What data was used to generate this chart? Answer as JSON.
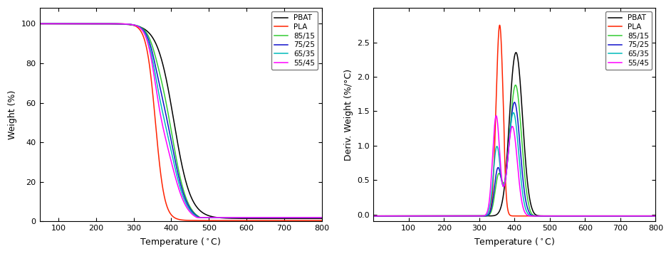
{
  "legend_labels": [
    "PBAT",
    "PLA",
    "85/15",
    "75/25",
    "65/35",
    "55/45"
  ],
  "colors": [
    "#000000",
    "#ff2200",
    "#33cc33",
    "#1111cc",
    "#00bbbb",
    "#ff00ff"
  ],
  "linewidth": 1.1,
  "xlim_left": [
    50,
    800
  ],
  "xlim_right": [
    0,
    800
  ],
  "ylim_left": [
    0,
    108
  ],
  "ylim_right": [
    -0.1,
    3.0
  ],
  "yticks_left": [
    0,
    20,
    40,
    60,
    80,
    100
  ],
  "yticks_right": [
    0.0,
    0.5,
    1.0,
    1.5,
    2.0,
    2.5
  ],
  "xticks": [
    100,
    200,
    300,
    400,
    500,
    600,
    700,
    800
  ],
  "ylabel_left": "Weight (%)",
  "ylabel_right": "Deriv. Weight (%/°C)",
  "xlabel": "Temperature (°C)"
}
